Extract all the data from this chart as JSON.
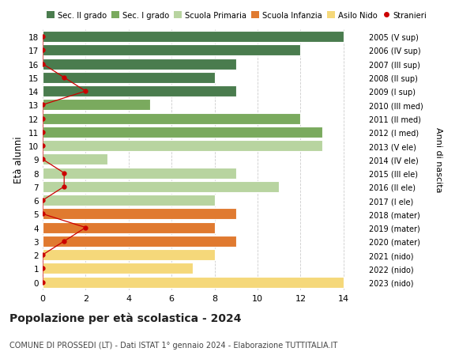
{
  "ages": [
    18,
    17,
    16,
    15,
    14,
    13,
    12,
    11,
    10,
    9,
    8,
    7,
    6,
    5,
    4,
    3,
    2,
    1,
    0
  ],
  "years_labels": [
    "2005 (V sup)",
    "2006 (IV sup)",
    "2007 (III sup)",
    "2008 (II sup)",
    "2009 (I sup)",
    "2010 (III med)",
    "2011 (II med)",
    "2012 (I med)",
    "2013 (V ele)",
    "2014 (IV ele)",
    "2015 (III ele)",
    "2016 (II ele)",
    "2017 (I ele)",
    "2018 (mater)",
    "2019 (mater)",
    "2020 (mater)",
    "2021 (nido)",
    "2022 (nido)",
    "2023 (nido)"
  ],
  "bar_values": [
    14,
    12,
    9,
    8,
    9,
    5,
    12,
    13,
    13,
    3,
    9,
    11,
    8,
    9,
    8,
    9,
    8,
    7,
    14
  ],
  "bar_colors": [
    "#4a7c4e",
    "#4a7c4e",
    "#4a7c4e",
    "#4a7c4e",
    "#4a7c4e",
    "#7aaa5e",
    "#7aaa5e",
    "#7aaa5e",
    "#b8d4a0",
    "#b8d4a0",
    "#b8d4a0",
    "#b8d4a0",
    "#b8d4a0",
    "#e07a30",
    "#e07a30",
    "#e07a30",
    "#f5d87a",
    "#f5d87a",
    "#f5d87a"
  ],
  "stranieri_values": [
    0,
    0,
    0,
    1,
    2,
    0,
    0,
    0,
    0,
    0,
    1,
    1,
    0,
    0,
    2,
    1,
    0,
    0,
    0
  ],
  "legend_labels": [
    "Sec. II grado",
    "Sec. I grado",
    "Scuola Primaria",
    "Scuola Infanzia",
    "Asilo Nido",
    "Stranieri"
  ],
  "legend_colors": [
    "#4a7c4e",
    "#7aaa5e",
    "#b8d4a0",
    "#e07a30",
    "#f5d87a",
    "#cc0000"
  ],
  "ylabel": "Età alunni",
  "right_ylabel": "Anni di nascita",
  "title": "Popolazione per età scolastica - 2024",
  "subtitle": "COMUNE DI PROSSEDI (LT) - Dati ISTAT 1° gennaio 2024 - Elaborazione TUTTITALIA.IT",
  "xlim": [
    0,
    15
  ],
  "background_color": "#ffffff",
  "grid_color": "#cccccc",
  "stranieri_color": "#cc0000"
}
